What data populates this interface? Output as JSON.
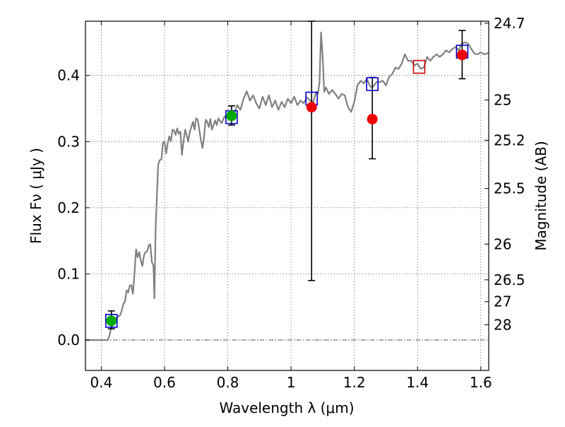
{
  "chart_data": {
    "type": "scatter",
    "title": "",
    "xlabel": "Wavelength  λ (μm)",
    "ylabel": "Flux  Fν  ( μJy )",
    "ylabel_right": "Magnitude (AB)",
    "xlim": [
      0.35,
      1.625
    ],
    "ylim": [
      -0.046,
      0.482
    ],
    "grid": true,
    "legend": "none",
    "x_ticks": [
      0.4,
      0.6,
      0.8,
      1.0,
      1.2,
      1.4,
      1.6
    ],
    "x_tick_labels": [
      "0.4",
      "0.6",
      "0.8",
      "1",
      "1.2",
      "1.4",
      "1.6"
    ],
    "y_ticks": [
      0.0,
      0.1,
      0.2,
      0.3,
      0.4
    ],
    "y_tick_labels": [
      "0.0",
      "0.1",
      "0.2",
      "0.3",
      "0.4"
    ],
    "right_ticks": [
      {
        "label": "24.7",
        "flux": 0.479
      },
      {
        "label": "25",
        "flux": 0.363
      },
      {
        "label": "25.2",
        "flux": 0.302
      },
      {
        "label": "25.5",
        "flux": 0.229
      },
      {
        "label": "26",
        "flux": 0.145
      },
      {
        "label": "26.5",
        "flux": 0.091
      },
      {
        "label": "27",
        "flux": 0.058
      },
      {
        "label": "28",
        "flux": 0.023
      }
    ],
    "model_spectrum": {
      "color": "#808080",
      "points": [
        [
          0.35,
          0.0
        ],
        [
          0.38,
          0.0
        ],
        [
          0.4,
          0.0
        ],
        [
          0.42,
          0.0
        ],
        [
          0.425,
          0.005
        ],
        [
          0.43,
          0.015
        ],
        [
          0.435,
          0.022
        ],
        [
          0.44,
          0.028
        ],
        [
          0.45,
          0.034
        ],
        [
          0.46,
          0.038
        ],
        [
          0.465,
          0.045
        ],
        [
          0.47,
          0.055
        ],
        [
          0.475,
          0.058
        ],
        [
          0.48,
          0.075
        ],
        [
          0.485,
          0.072
        ],
        [
          0.49,
          0.082
        ],
        [
          0.495,
          0.083
        ],
        [
          0.5,
          0.07
        ],
        [
          0.505,
          0.1
        ],
        [
          0.51,
          0.137
        ],
        [
          0.515,
          0.125
        ],
        [
          0.52,
          0.133
        ],
        [
          0.525,
          0.12
        ],
        [
          0.53,
          0.112
        ],
        [
          0.535,
          0.128
        ],
        [
          0.54,
          0.133
        ],
        [
          0.545,
          0.134
        ],
        [
          0.55,
          0.143
        ],
        [
          0.555,
          0.145
        ],
        [
          0.56,
          0.118
        ],
        [
          0.565,
          0.112
        ],
        [
          0.568,
          0.063
        ],
        [
          0.572,
          0.17
        ],
        [
          0.575,
          0.208
        ],
        [
          0.58,
          0.265
        ],
        [
          0.585,
          0.272
        ],
        [
          0.59,
          0.273
        ],
        [
          0.595,
          0.298
        ],
        [
          0.6,
          0.3
        ],
        [
          0.605,
          0.282
        ],
        [
          0.61,
          0.297
        ],
        [
          0.615,
          0.308
        ],
        [
          0.62,
          0.3
        ],
        [
          0.625,
          0.318
        ],
        [
          0.63,
          0.317
        ],
        [
          0.635,
          0.31
        ],
        [
          0.64,
          0.32
        ],
        [
          0.645,
          0.312
        ],
        [
          0.65,
          0.315
        ],
        [
          0.655,
          0.28
        ],
        [
          0.66,
          0.3
        ],
        [
          0.665,
          0.318
        ],
        [
          0.67,
          0.31
        ],
        [
          0.675,
          0.3
        ],
        [
          0.68,
          0.315
        ],
        [
          0.685,
          0.322
        ],
        [
          0.69,
          0.33
        ],
        [
          0.695,
          0.318
        ],
        [
          0.7,
          0.335
        ],
        [
          0.705,
          0.333
        ],
        [
          0.71,
          0.318
        ],
        [
          0.715,
          0.302
        ],
        [
          0.72,
          0.29
        ],
        [
          0.725,
          0.307
        ],
        [
          0.73,
          0.333
        ],
        [
          0.735,
          0.33
        ],
        [
          0.74,
          0.322
        ],
        [
          0.745,
          0.334
        ],
        [
          0.75,
          0.318
        ],
        [
          0.755,
          0.325
        ],
        [
          0.76,
          0.332
        ],
        [
          0.765,
          0.325
        ],
        [
          0.77,
          0.335
        ],
        [
          0.78,
          0.328
        ],
        [
          0.79,
          0.338
        ],
        [
          0.8,
          0.335
        ],
        [
          0.81,
          0.343
        ],
        [
          0.82,
          0.342
        ],
        [
          0.83,
          0.355
        ],
        [
          0.84,
          0.348
        ],
        [
          0.85,
          0.365
        ],
        [
          0.86,
          0.376
        ],
        [
          0.87,
          0.362
        ],
        [
          0.88,
          0.37
        ],
        [
          0.89,
          0.358
        ],
        [
          0.9,
          0.35
        ],
        [
          0.91,
          0.368
        ],
        [
          0.92,
          0.355
        ],
        [
          0.93,
          0.37
        ],
        [
          0.94,
          0.352
        ],
        [
          0.95,
          0.362
        ],
        [
          0.96,
          0.348
        ],
        [
          0.97,
          0.36
        ],
        [
          0.98,
          0.352
        ],
        [
          0.99,
          0.365
        ],
        [
          1.0,
          0.358
        ],
        [
          1.01,
          0.368
        ],
        [
          1.02,
          0.355
        ],
        [
          1.03,
          0.362
        ],
        [
          1.04,
          0.358
        ],
        [
          1.05,
          0.367
        ],
        [
          1.06,
          0.362
        ],
        [
          1.07,
          0.36
        ],
        [
          1.08,
          0.375
        ],
        [
          1.085,
          0.372
        ],
        [
          1.09,
          0.39
        ],
        [
          1.095,
          0.465
        ],
        [
          1.1,
          0.428
        ],
        [
          1.105,
          0.375
        ],
        [
          1.11,
          0.382
        ],
        [
          1.12,
          0.372
        ],
        [
          1.13,
          0.378
        ],
        [
          1.14,
          0.372
        ],
        [
          1.15,
          0.365
        ],
        [
          1.16,
          0.372
        ],
        [
          1.17,
          0.37
        ],
        [
          1.18,
          0.352
        ],
        [
          1.19,
          0.345
        ],
        [
          1.2,
          0.36
        ],
        [
          1.21,
          0.385
        ],
        [
          1.22,
          0.392
        ],
        [
          1.23,
          0.388
        ],
        [
          1.24,
          0.395
        ],
        [
          1.25,
          0.383
        ],
        [
          1.26,
          0.383
        ],
        [
          1.27,
          0.39
        ],
        [
          1.28,
          0.39
        ],
        [
          1.29,
          0.392
        ],
        [
          1.3,
          0.385
        ],
        [
          1.31,
          0.398
        ],
        [
          1.32,
          0.402
        ],
        [
          1.33,
          0.412
        ],
        [
          1.34,
          0.41
        ],
        [
          1.35,
          0.418
        ],
        [
          1.36,
          0.432
        ],
        [
          1.37,
          0.422
        ],
        [
          1.38,
          0.422
        ],
        [
          1.39,
          0.415
        ],
        [
          1.4,
          0.418
        ],
        [
          1.41,
          0.41
        ],
        [
          1.42,
          0.412
        ],
        [
          1.43,
          0.428
        ],
        [
          1.44,
          0.422
        ],
        [
          1.45,
          0.428
        ],
        [
          1.46,
          0.432
        ],
        [
          1.47,
          0.428
        ],
        [
          1.48,
          0.432
        ],
        [
          1.49,
          0.438
        ],
        [
          1.5,
          0.435
        ],
        [
          1.51,
          0.44
        ],
        [
          1.52,
          0.443
        ],
        [
          1.53,
          0.438
        ],
        [
          1.54,
          0.448
        ],
        [
          1.55,
          0.45
        ],
        [
          1.56,
          0.448
        ],
        [
          1.57,
          0.44
        ],
        [
          1.58,
          0.433
        ],
        [
          1.59,
          0.432
        ],
        [
          1.6,
          0.435
        ],
        [
          1.61,
          0.432
        ],
        [
          1.625,
          0.434
        ]
      ]
    },
    "model_photometry": {
      "marker": "open-square",
      "color": "#0000cc",
      "points": [
        {
          "x": 0.432,
          "y": 0.029
        },
        {
          "x": 0.812,
          "y": 0.337
        },
        {
          "x": 1.065,
          "y": 0.365
        },
        {
          "x": 1.257,
          "y": 0.387
        },
        {
          "x": 1.541,
          "y": 0.436
        }
      ]
    },
    "model_photometry_extra": {
      "marker": "open-square",
      "color": "#cc0000",
      "points": [
        {
          "x": 1.405,
          "y": 0.413
        }
      ]
    },
    "observed": [
      {
        "x": 0.432,
        "y": 0.029,
        "err_low": 0.017,
        "err_high": 0.044,
        "color": "#00aa00"
      },
      {
        "x": 0.812,
        "y": 0.339,
        "err_low": 0.325,
        "err_high": 0.354,
        "color": "#00aa00"
      },
      {
        "x": 1.065,
        "y": 0.352,
        "err_low": 0.09,
        "err_high": 0.482,
        "color": "#ee0000"
      },
      {
        "x": 1.257,
        "y": 0.334,
        "err_low": 0.274,
        "err_high": 0.397,
        "color": "#ee0000"
      },
      {
        "x": 1.541,
        "y": 0.431,
        "err_low": 0.395,
        "err_high": 0.468,
        "color": "#ee0000"
      }
    ],
    "zero_line": {
      "y": 0.0,
      "style": "dash-dot"
    }
  }
}
